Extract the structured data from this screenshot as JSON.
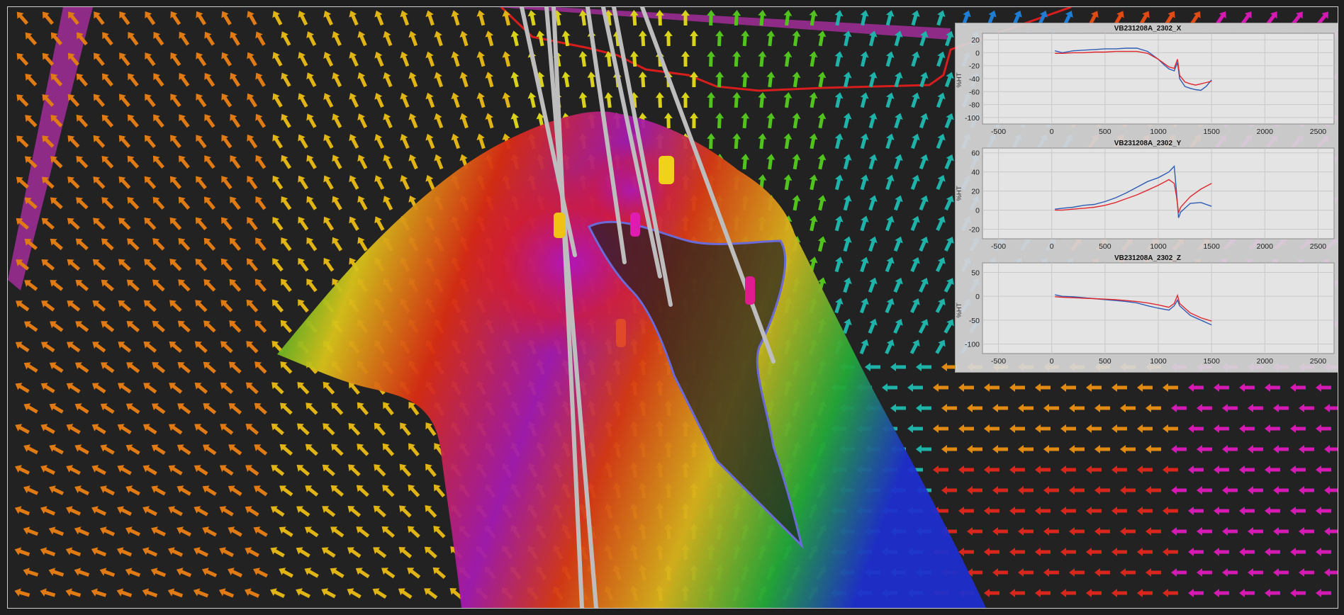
{
  "app": {
    "view": "3D viewport"
  },
  "colors": {
    "background": "#222222",
    "series_blue": "#2f5db4",
    "series_red": "#e0282f",
    "panel_bg": "#d6d6d6",
    "tunnel_outline": "#6a6ad8"
  },
  "icons": {
    "field_arrow": "field-arrow-icon"
  },
  "scene": {
    "layers": [
      "vector-field-arrows",
      "anomaly-surface",
      "drillhole-traces",
      "tunnel-outline",
      "boundary-lines"
    ]
  },
  "panel": {
    "charts": [
      {
        "title": "VB231208A_2302_X",
        "ylabel": "%HT",
        "xticks": [
          "-500",
          "0",
          "500",
          "1000",
          "1500",
          "2000",
          "2500"
        ],
        "yticks": [
          "20",
          "0",
          "-20",
          "-40",
          "-60",
          "-80",
          "-100"
        ]
      },
      {
        "title": "VB231208A_2302_Y",
        "ylabel": "%HT",
        "xticks": [
          "-500",
          "0",
          "500",
          "1000",
          "1500",
          "2000",
          "2500"
        ],
        "yticks": [
          "60",
          "40",
          "20",
          "0",
          "-20"
        ]
      },
      {
        "title": "VB231208A_2302_Z",
        "ylabel": "%HT",
        "xticks": [
          "-500",
          "0",
          "500",
          "1000",
          "1500",
          "2000",
          "2500"
        ],
        "yticks": [
          "50",
          "0",
          "-50",
          "-100"
        ]
      }
    ]
  },
  "chart_data": [
    {
      "type": "line",
      "title": "VB231208A_2302_X",
      "ylabel": "%HT",
      "xlim": [
        -650,
        2650
      ],
      "ylim": [
        -110,
        30
      ],
      "series": [
        {
          "color": "#2f5db4",
          "x": [
            30,
            100,
            200,
            300,
            400,
            500,
            600,
            700,
            800,
            900,
            1000,
            1050,
            1100,
            1150,
            1180,
            1200,
            1250,
            1300,
            1350,
            1400,
            1450,
            1500
          ],
          "y": [
            3,
            0,
            3,
            4,
            5,
            6,
            6,
            7,
            7,
            2,
            -10,
            -18,
            -25,
            -28,
            -15,
            -40,
            -52,
            -55,
            -57,
            -58,
            -52,
            -42
          ]
        },
        {
          "color": "#e0282f",
          "x": [
            30,
            100,
            200,
            300,
            400,
            500,
            600,
            700,
            800,
            900,
            1000,
            1050,
            1100,
            1150,
            1180,
            1200,
            1250,
            1300,
            1350,
            1400,
            1450,
            1500
          ],
          "y": [
            -1,
            -1,
            0,
            0,
            1,
            1,
            2,
            2,
            2,
            -1,
            -10,
            -16,
            -22,
            -24,
            -10,
            -35,
            -45,
            -48,
            -50,
            -48,
            -46,
            -44
          ]
        }
      ]
    },
    {
      "type": "line",
      "title": "VB231208A_2302_Y",
      "ylabel": "%HT",
      "xlim": [
        -650,
        2650
      ],
      "ylim": [
        -30,
        65
      ],
      "series": [
        {
          "color": "#2f5db4",
          "x": [
            30,
            100,
            200,
            300,
            400,
            500,
            600,
            700,
            800,
            900,
            1000,
            1050,
            1100,
            1150,
            1170,
            1190,
            1210,
            1250,
            1300,
            1400,
            1500
          ],
          "y": [
            1,
            2,
            3,
            5,
            6,
            9,
            13,
            18,
            24,
            30,
            34,
            37,
            40,
            46,
            20,
            -8,
            -2,
            2,
            7,
            8,
            4
          ]
        },
        {
          "color": "#e0282f",
          "x": [
            30,
            100,
            200,
            300,
            400,
            500,
            600,
            700,
            800,
            900,
            1000,
            1050,
            1100,
            1150,
            1170,
            1190,
            1210,
            1250,
            1300,
            1400,
            1500
          ],
          "y": [
            0,
            0,
            1,
            2,
            3,
            5,
            8,
            12,
            16,
            21,
            26,
            29,
            32,
            28,
            15,
            -3,
            3,
            8,
            14,
            22,
            28
          ]
        }
      ]
    },
    {
      "type": "line",
      "title": "VB231208A_2302_Z",
      "ylabel": "%HT",
      "xlim": [
        -650,
        2650
      ],
      "ylim": [
        -120,
        70
      ],
      "series": [
        {
          "color": "#2f5db4",
          "x": [
            30,
            100,
            200,
            300,
            400,
            500,
            600,
            700,
            800,
            900,
            1000,
            1100,
            1150,
            1180,
            1200,
            1250,
            1300,
            1400,
            1500
          ],
          "y": [
            3,
            0,
            -1,
            -3,
            -5,
            -7,
            -9,
            -11,
            -14,
            -20,
            -25,
            -29,
            -20,
            -8,
            -20,
            -30,
            -40,
            -50,
            -60
          ]
        },
        {
          "color": "#e0282f",
          "x": [
            30,
            100,
            200,
            300,
            400,
            500,
            600,
            700,
            800,
            900,
            1000,
            1100,
            1150,
            1180,
            1200,
            1250,
            1300,
            1400,
            1500
          ],
          "y": [
            -1,
            -2,
            -3,
            -4,
            -5,
            -6,
            -7,
            -9,
            -11,
            -14,
            -18,
            -23,
            -15,
            2,
            -15,
            -25,
            -35,
            -45,
            -52
          ]
        }
      ]
    }
  ]
}
